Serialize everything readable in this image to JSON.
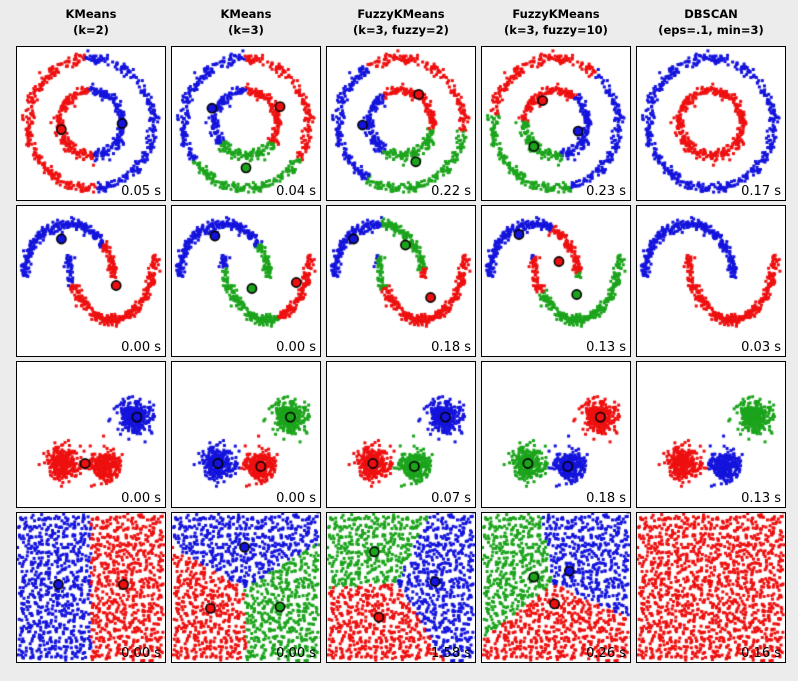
{
  "page": {
    "background": "#ececec"
  },
  "colors": {
    "red": "#ee1010",
    "green": "#1ca41c",
    "blue": "#1414dd",
    "centroid_stroke": "#000000",
    "panel_bg": "#ffffff",
    "panel_border": "#000000",
    "title_color": "#000000"
  },
  "columns": [
    {
      "line1": "KMeans",
      "line2": "(k=2)"
    },
    {
      "line1": "KMeans",
      "line2": "(k=3)"
    },
    {
      "line1": "FuzzyKMeans",
      "line2": "(k=3, fuzzy=2)"
    },
    {
      "line1": "FuzzyKMeans",
      "line2": "(k=3, fuzzy=10)"
    },
    {
      "line1": "DBSCAN",
      "line2": "(eps=.1, min=3)"
    }
  ],
  "chart_data": {
    "type": "scatter",
    "title": "Clustering algorithm comparison: 5 algorithms (columns) x 4 datasets (rows), timing shown bottom-right of each panel",
    "legend_position": "none",
    "grid": false,
    "rows": [
      {
        "type": "circles",
        "seed": 101,
        "center": [
          0.5,
          0.5
        ],
        "r_outer": 0.425,
        "r_inner": 0.215,
        "noise": 0.017,
        "n_outer": 480,
        "n_inner": 360
      },
      {
        "type": "moons",
        "seed": 202,
        "noise": 0.016,
        "n_per_moon": 320,
        "arcs": [
          {
            "cx": 0.35,
            "cy": 0.47,
            "rx": 0.3,
            "ry": 0.35,
            "flip": 1
          },
          {
            "cx": 0.64,
            "cy": 0.33,
            "rx": 0.29,
            "ry": 0.43,
            "flip": -1
          }
        ]
      },
      {
        "type": "blobs",
        "seed": 303,
        "sigma": 0.052,
        "n_per_blob": 300,
        "centers": [
          [
            0.8,
            0.375
          ],
          [
            0.31,
            0.7
          ],
          [
            0.59,
            0.72
          ]
        ]
      },
      {
        "type": "grid",
        "seed": 404,
        "cells": 17,
        "pts_per_cell": 5,
        "lo": 0.04,
        "hi": 0.96,
        "jitter": 0.018
      }
    ],
    "panels": [
      [
        {
          "time": "0.05 s",
          "centroids": [
            {
              "x": 0.3,
              "y": 0.54,
              "color": "red"
            },
            {
              "x": 0.71,
              "y": 0.5,
              "color": "blue"
            }
          ]
        },
        {
          "time": "0.04 s",
          "centroids": [
            {
              "x": 0.27,
              "y": 0.4,
              "color": "blue"
            },
            {
              "x": 0.73,
              "y": 0.39,
              "color": "red"
            },
            {
              "x": 0.5,
              "y": 0.79,
              "color": "green"
            }
          ]
        },
        {
          "time": "0.22 s",
          "centroids": [
            {
              "x": 0.24,
              "y": 0.51,
              "color": "blue"
            },
            {
              "x": 0.62,
              "y": 0.31,
              "color": "red"
            },
            {
              "x": 0.6,
              "y": 0.75,
              "color": "green"
            }
          ]
        },
        {
          "time": "0.23 s",
          "centroids": [
            {
              "x": 0.41,
              "y": 0.35,
              "color": "red"
            },
            {
              "x": 0.65,
              "y": 0.55,
              "color": "blue"
            },
            {
              "x": 0.35,
              "y": 0.65,
              "color": "green"
            }
          ]
        },
        {
          "time": "0.17 s",
          "cluster_colors": [
            "blue",
            "red"
          ]
        }
      ],
      [
        {
          "time": "0.00 s",
          "centroids": [
            {
              "x": 0.3,
              "y": 0.22,
              "color": "blue"
            },
            {
              "x": 0.67,
              "y": 0.53,
              "color": "red"
            }
          ]
        },
        {
          "time": "0.00 s",
          "centroids": [
            {
              "x": 0.29,
              "y": 0.2,
              "color": "blue"
            },
            {
              "x": 0.54,
              "y": 0.55,
              "color": "green"
            },
            {
              "x": 0.84,
              "y": 0.51,
              "color": "red"
            }
          ]
        },
        {
          "time": "0.18 s",
          "centroids": [
            {
              "x": 0.18,
              "y": 0.22,
              "color": "blue"
            },
            {
              "x": 0.53,
              "y": 0.26,
              "color": "green"
            },
            {
              "x": 0.7,
              "y": 0.61,
              "color": "red"
            }
          ]
        },
        {
          "time": "0.13 s",
          "centroids": [
            {
              "x": 0.25,
              "y": 0.19,
              "color": "blue"
            },
            {
              "x": 0.52,
              "y": 0.37,
              "color": "red"
            },
            {
              "x": 0.64,
              "y": 0.59,
              "color": "green"
            }
          ]
        },
        {
          "time": "0.03 s",
          "cluster_colors": [
            "blue",
            "red"
          ]
        }
      ],
      [
        {
          "time": "0.00 s",
          "centroids": [
            {
              "x": 0.81,
              "y": 0.38,
              "color": "blue"
            },
            {
              "x": 0.46,
              "y": 0.7,
              "color": "red"
            }
          ]
        },
        {
          "time": "0.00 s",
          "centroids": [
            {
              "x": 0.8,
              "y": 0.38,
              "color": "green"
            },
            {
              "x": 0.31,
              "y": 0.7,
              "color": "blue"
            },
            {
              "x": 0.6,
              "y": 0.72,
              "color": "red"
            }
          ]
        },
        {
          "time": "0.07 s",
          "centroids": [
            {
              "x": 0.8,
              "y": 0.38,
              "color": "blue"
            },
            {
              "x": 0.31,
              "y": 0.7,
              "color": "red"
            },
            {
              "x": 0.59,
              "y": 0.72,
              "color": "green"
            }
          ]
        },
        {
          "time": "0.18 s",
          "centroids": [
            {
              "x": 0.8,
              "y": 0.38,
              "color": "red"
            },
            {
              "x": 0.31,
              "y": 0.7,
              "color": "green"
            },
            {
              "x": 0.58,
              "y": 0.72,
              "color": "blue"
            }
          ]
        },
        {
          "time": "0.13 s",
          "cluster_colors": [
            "green",
            "red",
            "blue"
          ]
        }
      ],
      [
        {
          "time": "0.00 s",
          "centroids": [
            {
              "x": 0.28,
              "y": 0.48,
              "color": "blue"
            },
            {
              "x": 0.72,
              "y": 0.48,
              "color": "red"
            }
          ]
        },
        {
          "time": "0.00 s",
          "centroids": [
            {
              "x": 0.49,
              "y": 0.23,
              "color": "blue"
            },
            {
              "x": 0.26,
              "y": 0.64,
              "color": "red"
            },
            {
              "x": 0.73,
              "y": 0.63,
              "color": "green"
            }
          ]
        },
        {
          "time": "1.58 s",
          "centroids": [
            {
              "x": 0.32,
              "y": 0.26,
              "color": "green"
            },
            {
              "x": 0.73,
              "y": 0.46,
              "color": "blue"
            },
            {
              "x": 0.35,
              "y": 0.7,
              "color": "red"
            }
          ]
        },
        {
          "time": "0.26 s",
          "centroids": [
            {
              "x": 0.35,
              "y": 0.43,
              "color": "green"
            },
            {
              "x": 0.59,
              "y": 0.39,
              "color": "blue"
            },
            {
              "x": 0.49,
              "y": 0.61,
              "color": "red"
            }
          ]
        },
        {
          "time": "0.16 s",
          "cluster_colors": [
            "red"
          ]
        }
      ]
    ]
  }
}
